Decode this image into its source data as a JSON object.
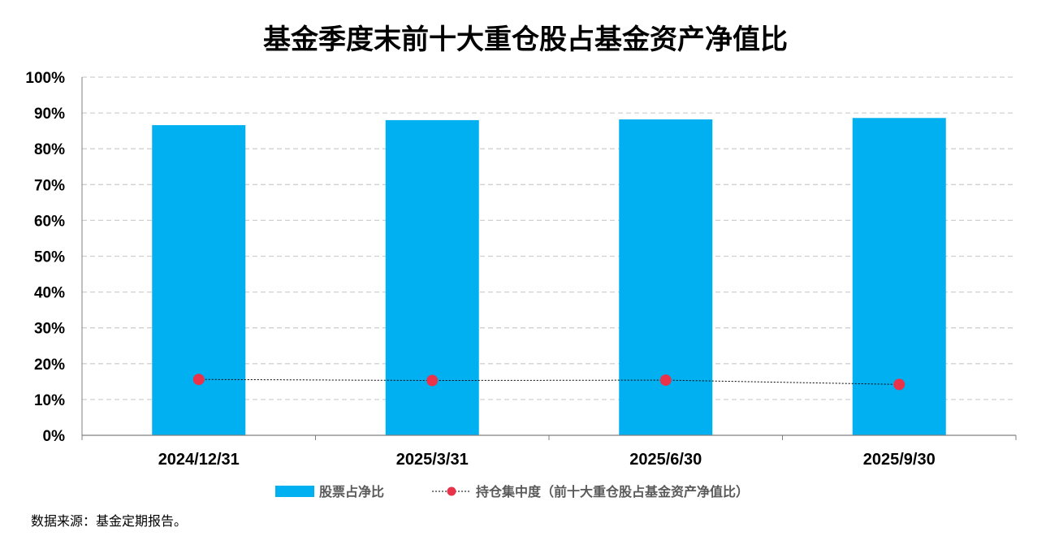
{
  "chart_data": {
    "type": "bar",
    "title": "基金季度末前十大重仓股占基金资产净值比",
    "categories": [
      "2024/12/31",
      "2025/3/31",
      "2025/6/30",
      "2025/9/30"
    ],
    "series": [
      {
        "name": "股票占净比",
        "type": "bar",
        "color": "#00B0F0",
        "values": [
          86.6,
          88.0,
          88.2,
          88.6
        ]
      },
      {
        "name": "持仓集中度（前十大重仓股占基金资产净值比）",
        "type": "line",
        "style": "dotted-line-with-markers",
        "color": "#E8334A",
        "values": [
          15.6,
          15.3,
          15.4,
          14.2
        ]
      }
    ],
    "y_ticks": [
      "0%",
      "10%",
      "20%",
      "30%",
      "40%",
      "50%",
      "60%",
      "70%",
      "80%",
      "90%",
      "100%"
    ],
    "ylim": [
      0,
      100
    ],
    "y_unit": "%",
    "grid": "horizontal dashed",
    "legend_position": "bottom"
  },
  "source_note": "数据来源：基金定期报告。"
}
